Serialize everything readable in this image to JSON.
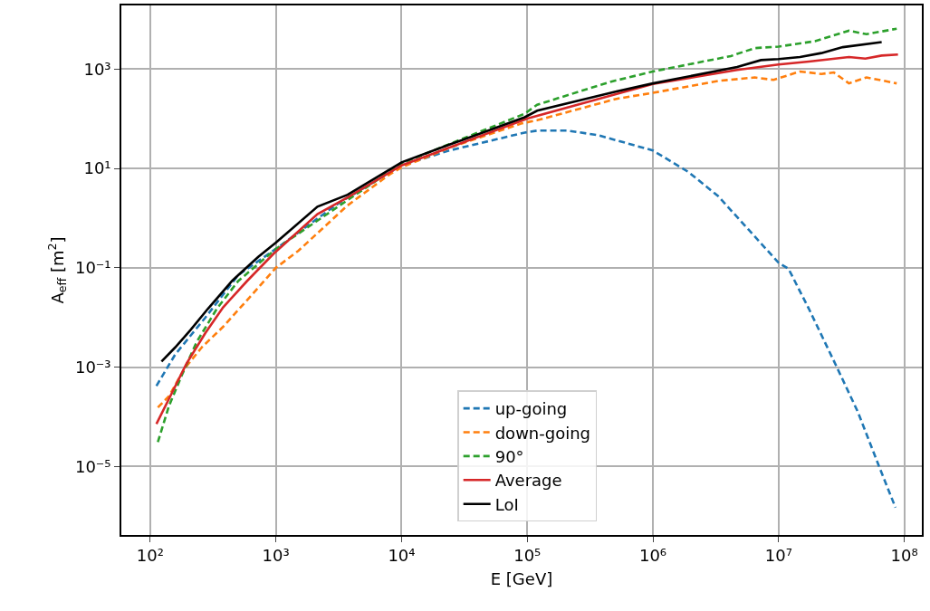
{
  "chart_data": {
    "type": "line",
    "xlabel": "E [GeV]",
    "ylabel": "A$_{eff}$ [m$^{2}$]",
    "log": "xy",
    "grid": true,
    "legend": "bottom",
    "xlim": [
      58.9,
      138000000
    ],
    "ylim": [
      4.2e-07,
      19000
    ],
    "xticks": [
      {
        "value": 100,
        "label": "10²"
      },
      {
        "value": 1000,
        "label": "10³"
      },
      {
        "value": 10000,
        "label": "10⁴"
      },
      {
        "value": 100000,
        "label": "10⁵"
      },
      {
        "value": 1000000,
        "label": "10⁶"
      },
      {
        "value": 10000000,
        "label": "10⁷"
      },
      {
        "value": 100000000,
        "label": "10⁸"
      }
    ],
    "yticks": [
      {
        "value": 1e-05,
        "label": "10⁻⁵"
      },
      {
        "value": 0.001,
        "label": "10⁻³"
      },
      {
        "value": 0.1,
        "label": "10⁻¹"
      },
      {
        "value": 10,
        "label": "10¹"
      },
      {
        "value": 1000,
        "label": "10³"
      }
    ],
    "series": [
      {
        "name": "up-going",
        "color": "#1f77b4",
        "line_style": "dashed",
        "x": [
          112,
          158,
          275,
          501,
          1000,
          3160,
          10000,
          24000,
          95500,
          120000,
          209000,
          363000,
          1000000,
          1910000,
          3310000,
          5750000,
          10000000,
          12000000,
          17400000,
          28800000,
          42700000,
          63100000,
          85100000
        ],
        "values": [
          0.00042,
          0.0018,
          0.01,
          0.071,
          0.24,
          2.0,
          11.5,
          22.9,
          52.5,
          57.5,
          57.5,
          46.8,
          22.9,
          8.5,
          2.75,
          0.59,
          0.126,
          0.095,
          0.015,
          0.00105,
          0.000126,
          1e-05,
          1.5e-06
        ]
      },
      {
        "name": "down-going",
        "color": "#ff7f0e",
        "line_style": "dashed",
        "x": [
          115,
          141,
          186,
          257,
          380,
          631,
          1000,
          1510,
          3720,
          7940,
          10000,
          24000,
          91200,
          120000,
          513000,
          1000000,
          3310000,
          6460000,
          9120000,
          14800000,
          21900000,
          27500000,
          36300000,
          50100000,
          87100000
        ],
        "values": [
          0.000155,
          0.00026,
          0.00091,
          0.0025,
          0.0065,
          0.027,
          0.1,
          0.22,
          1.8,
          7.4,
          10.5,
          26,
          81,
          93,
          251,
          331,
          575,
          676,
          603,
          891,
          794,
          851,
          513,
          676,
          513
        ]
      },
      {
        "name": "90°",
        "color": "#2ca02c",
        "line_style": "dashed",
        "x": [
          115,
          141,
          178,
          234,
          339,
          501,
          1000,
          10000,
          95500,
          120000,
          457000,
          1000000,
          4170000,
          6460000,
          10000000,
          19500000,
          36300000,
          50100000,
          87100000
        ],
        "values": [
          3.1e-05,
          0.000166,
          0.00068,
          0.0032,
          0.015,
          0.054,
          0.24,
          12.6,
          126,
          191,
          550,
          891,
          1820,
          2630,
          2820,
          3630,
          5890,
          5010,
          6460
        ]
      },
      {
        "name": "Average",
        "color": "#d62728",
        "line_style": "solid",
        "x": [
          112,
          148,
          195,
          275,
          380,
          589,
          955,
          2140,
          3720,
          10000,
          100000,
          1000000,
          4680000,
          10000000,
          17400000,
          36300000,
          49000000,
          66100000,
          89100000
        ],
        "values": [
          7.2e-05,
          0.000295,
          0.0012,
          0.0049,
          0.016,
          0.054,
          0.19,
          1.2,
          2.6,
          11.5,
          100,
          500,
          955,
          1230,
          1410,
          1740,
          1620,
          1860,
          1950
        ]
      },
      {
        "name": "LoI",
        "color": "#000000",
        "line_style": "solid",
        "x": [
          123,
          158,
          209,
          288,
          447,
          501,
          724,
          1000,
          2140,
          3720,
          10000,
          24000,
          95500,
          120000,
          513000,
          1000000,
          4680000,
          7240000,
          10000000,
          14800000,
          21900000,
          32400000,
          66100000
        ],
        "values": [
          0.0013,
          0.0025,
          0.0056,
          0.015,
          0.054,
          0.071,
          0.166,
          0.32,
          1.7,
          2.95,
          13.2,
          30,
          107,
          145,
          355,
          513,
          1100,
          1510,
          1585,
          1740,
          2090,
          2750,
          3470
        ]
      }
    ]
  }
}
